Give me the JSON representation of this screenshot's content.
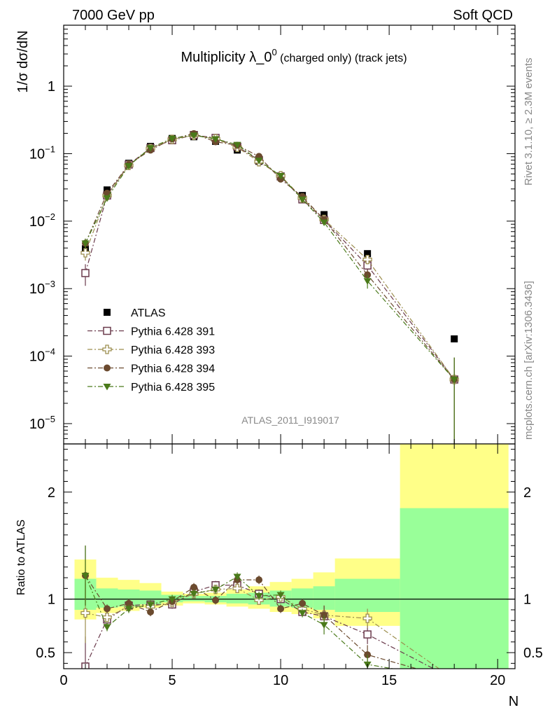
{
  "header": {
    "left": "7000 GeV pp",
    "right": "Soft QCD"
  },
  "side_text": {
    "rivet": "Rivet 3.1.10, ≥ 2.3M events",
    "source": "mcplots.cern.ch [arXiv:1306.3436]"
  },
  "chart_data": [
    {
      "type": "scatter",
      "title": "Multiplicity λ_0",
      "title_sup": "0",
      "title_small": " (charged only) (track jets)",
      "ylabel": "1/σ dσ/dN",
      "xlabel": "N",
      "yscale": "log",
      "ylim": [
        5e-06,
        8
      ],
      "xlim": [
        0,
        20.8
      ],
      "analysis_tag": "ATLAS_2011_I919017",
      "yticks": [
        {
          "value": 1e-05,
          "base": "10",
          "exp": "−5"
        },
        {
          "value": 0.0001,
          "base": "10",
          "exp": "−4"
        },
        {
          "value": 0.001,
          "base": "10",
          "exp": "−3"
        },
        {
          "value": 0.01,
          "base": "10",
          "exp": "−2"
        },
        {
          "value": 0.1,
          "base": "10",
          "exp": "−1"
        },
        {
          "value": 1,
          "base": "1",
          "exp": ""
        }
      ],
      "legend_position": "middle-left",
      "series": [
        {
          "name": "ATLAS",
          "color": "#000000",
          "marker": "filled-square",
          "line": "none",
          "x": [
            1,
            2,
            3,
            4,
            5,
            6,
            7,
            8,
            9,
            10,
            11,
            12,
            14,
            18
          ],
          "y": [
            0.0039,
            0.029,
            0.072,
            0.128,
            0.168,
            0.178,
            0.152,
            0.113,
            0.077,
            0.046,
            0.024,
            0.0125,
            0.0033,
            0.00018
          ]
        },
        {
          "name": "Pythia 6.428 391",
          "color": "#6a3a4c",
          "marker": "open-square",
          "line": "dash-dot",
          "x": [
            1,
            2,
            3,
            4,
            5,
            6,
            7,
            8,
            9,
            10,
            11,
            12,
            14,
            18
          ],
          "y": [
            0.0017,
            0.024,
            0.069,
            0.121,
            0.158,
            0.189,
            0.171,
            0.127,
            0.08,
            0.046,
            0.021,
            0.0104,
            0.0022,
            4.5e-05
          ],
          "yerr": [
            0.0006,
            0.002,
            0,
            0,
            0,
            0,
            0,
            0,
            0,
            0,
            0,
            0.001,
            0.0004,
            5e-05
          ]
        },
        {
          "name": "Pythia 6.428 393",
          "color": "#9c8e4e",
          "marker": "open-cross",
          "line": "dash-dot",
          "x": [
            1,
            2,
            3,
            4,
            5,
            6,
            7,
            8,
            9,
            10,
            11,
            12,
            14,
            18
          ],
          "y": [
            0.0034,
            0.024,
            0.067,
            0.119,
            0.163,
            0.187,
            0.166,
            0.124,
            0.076,
            0.047,
            0.022,
            0.0106,
            0.0027,
            4.5e-05
          ],
          "yerr": [
            0.0008,
            0.002,
            0,
            0,
            0,
            0,
            0,
            0,
            0,
            0,
            0,
            0.001,
            0.0004,
            5e-05
          ]
        },
        {
          "name": "Pythia 6.428 394",
          "color": "#6b4a2e",
          "marker": "filled-circle",
          "line": "dash-dot",
          "x": [
            1,
            2,
            3,
            4,
            5,
            6,
            7,
            8,
            9,
            10,
            11,
            12,
            14,
            18
          ],
          "y": [
            0.0047,
            0.026,
            0.069,
            0.113,
            0.165,
            0.198,
            0.15,
            0.133,
            0.091,
            0.042,
            0.023,
            0.0106,
            0.0016,
            4.5e-05
          ],
          "yerr": [
            0.0008,
            0.002,
            0,
            0,
            0,
            0,
            0,
            0,
            0,
            0,
            0,
            0.001,
            0.0003,
            5e-05
          ]
        },
        {
          "name": "Pythia 6.428 395",
          "color": "#4a7a1a",
          "marker": "filled-triangle-down",
          "line": "dash-dot",
          "x": [
            1,
            2,
            3,
            4,
            5,
            6,
            7,
            8,
            9,
            10,
            11,
            12,
            14,
            18
          ],
          "y": [
            0.0047,
            0.022,
            0.066,
            0.122,
            0.168,
            0.187,
            0.165,
            0.136,
            0.079,
            0.047,
            0.021,
            0.0096,
            0.0013,
            4.5e-05
          ],
          "yerr": [
            0.0008,
            0.002,
            0,
            0,
            0,
            0,
            0,
            0,
            0,
            0,
            0,
            0.001,
            0.0003,
            5e-05
          ]
        }
      ]
    },
    {
      "type": "scatter",
      "ylabel": "Ratio to ATLAS",
      "xlabel": "N",
      "ylim": [
        0.35,
        2.45
      ],
      "xlim": [
        0,
        20.8
      ],
      "xticks": [
        0,
        5,
        10,
        15,
        20
      ],
      "yticks": [
        0.5,
        1,
        2
      ],
      "uncertainty_bands": {
        "yellow_color": "#ffff88",
        "green_color": "#99ff99",
        "bins": [
          {
            "x0": 0.5,
            "x1": 1.5,
            "yellow": [
              0.81,
              1.37
            ],
            "green": [
              0.9,
              1.19
            ]
          },
          {
            "x0": 1.5,
            "x1": 2.5,
            "yellow": [
              0.87,
              1.2
            ],
            "green": [
              0.92,
              1.1
            ]
          },
          {
            "x0": 2.5,
            "x1": 3.5,
            "yellow": [
              0.89,
              1.18
            ],
            "green": [
              0.93,
              1.09
            ]
          },
          {
            "x0": 3.5,
            "x1": 4.5,
            "yellow": [
              0.92,
              1.15
            ],
            "green": [
              0.95,
              1.08
            ]
          },
          {
            "x0": 4.5,
            "x1": 5.5,
            "yellow": [
              0.94,
              1.07
            ],
            "green": [
              0.97,
              1.04
            ]
          },
          {
            "x0": 5.5,
            "x1": 6.5,
            "yellow": [
              0.96,
              1.05
            ],
            "green": [
              0.98,
              1.03
            ]
          },
          {
            "x0": 6.5,
            "x1": 7.5,
            "yellow": [
              0.95,
              1.06
            ],
            "green": [
              0.97,
              1.03
            ]
          },
          {
            "x0": 7.5,
            "x1": 8.5,
            "yellow": [
              0.93,
              1.09
            ],
            "green": [
              0.96,
              1.05
            ]
          },
          {
            "x0": 8.5,
            "x1": 9.5,
            "yellow": [
              0.91,
              1.12
            ],
            "green": [
              0.95,
              1.06
            ]
          },
          {
            "x0": 9.5,
            "x1": 10.5,
            "yellow": [
              0.88,
              1.16
            ],
            "green": [
              0.93,
              1.08
            ]
          },
          {
            "x0": 10.5,
            "x1": 11.5,
            "yellow": [
              0.86,
              1.19
            ],
            "green": [
              0.92,
              1.1
            ]
          },
          {
            "x0": 11.5,
            "x1": 12.5,
            "yellow": [
              0.82,
              1.25
            ],
            "green": [
              0.9,
              1.12
            ]
          },
          {
            "x0": 12.5,
            "x1": 15.5,
            "yellow": [
              0.75,
              1.38
            ],
            "green": [
              0.88,
              1.19
            ]
          },
          {
            "x0": 15.5,
            "x1": 20.5,
            "yellow": [
              0.0,
              2.45
            ],
            "green": [
              0.0,
              1.85
            ]
          }
        ]
      },
      "series": [
        {
          "name": "Pythia 6.428 391",
          "color": "#6a3a4c",
          "marker": "open-square",
          "x": [
            1,
            2,
            3,
            4,
            5,
            6,
            7,
            8,
            9,
            10,
            11,
            12,
            14,
            18
          ],
          "y": [
            0.37,
            0.81,
            0.94,
            0.95,
            0.95,
            1.07,
            1.13,
            1.13,
            1.05,
            1.0,
            0.88,
            0.84,
            0.67,
            0.25
          ]
        },
        {
          "name": "Pythia 6.428 393",
          "color": "#9c8e4e",
          "marker": "open-cross",
          "x": [
            1,
            2,
            3,
            4,
            5,
            6,
            7,
            8,
            9,
            10,
            11,
            12,
            14,
            18
          ],
          "y": [
            0.87,
            0.83,
            0.93,
            0.93,
            0.97,
            1.05,
            1.09,
            1.1,
            0.99,
            1.02,
            0.91,
            0.85,
            0.82,
            0.25
          ]
        },
        {
          "name": "Pythia 6.428 394",
          "color": "#6b4a2e",
          "marker": "filled-circle",
          "x": [
            1,
            2,
            3,
            4,
            5,
            6,
            7,
            8,
            9,
            10,
            11,
            12,
            14,
            18
          ],
          "y": [
            1.22,
            0.91,
            0.96,
            0.88,
            0.98,
            1.11,
            0.99,
            1.18,
            1.18,
            0.91,
            0.96,
            0.85,
            0.48,
            0.25
          ]
        },
        {
          "name": "Pythia 6.428 395",
          "color": "#4a7a1a",
          "marker": "filled-triangle-down",
          "x": [
            1,
            2,
            3,
            4,
            5,
            6,
            7,
            8,
            9,
            10,
            11,
            12,
            14,
            18
          ],
          "y": [
            1.22,
            0.74,
            0.91,
            0.95,
            1.0,
            1.05,
            1.09,
            1.21,
            1.03,
            1.04,
            0.87,
            0.76,
            0.39,
            0.25
          ]
        }
      ]
    }
  ]
}
